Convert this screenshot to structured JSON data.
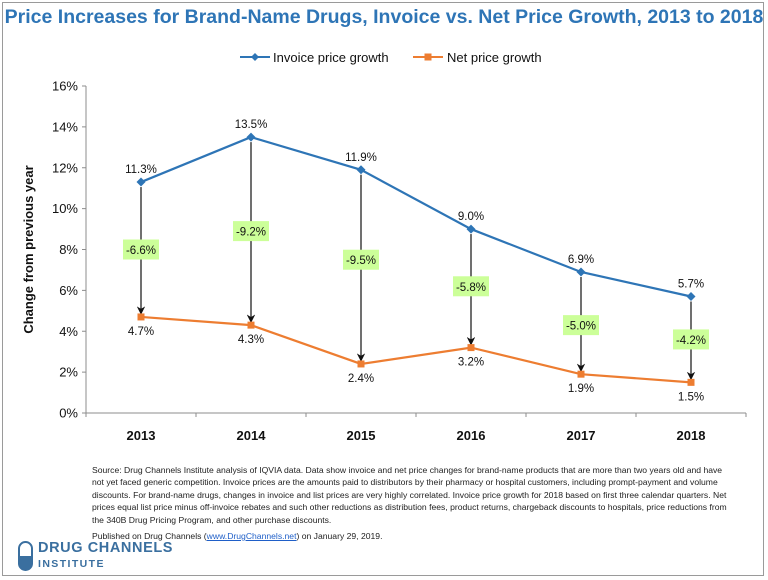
{
  "chart_data": {
    "type": "line",
    "title": "Price Increases for Brand-Name Drugs, Invoice vs. Net Price Growth, 2013 to 2018",
    "xlabel": "",
    "ylabel": "Change from previous year",
    "categories": [
      "2013",
      "2014",
      "2015",
      "2016",
      "2017",
      "2018"
    ],
    "ylim": [
      0,
      16
    ],
    "yticks": [
      0,
      2,
      4,
      6,
      8,
      10,
      12,
      14,
      16
    ],
    "ytick_labels": [
      "0%",
      "2%",
      "4%",
      "6%",
      "8%",
      "10%",
      "12%",
      "14%",
      "16%"
    ],
    "grid": false,
    "legend_position": "top-center",
    "series": [
      {
        "name": "Invoice price growth",
        "color": "#2e75b6",
        "marker": "diamond",
        "values": [
          11.3,
          13.5,
          11.9,
          9.0,
          6.9,
          5.7
        ],
        "labels": [
          "11.3%",
          "13.5%",
          "11.9%",
          "9.0%",
          "6.9%",
          "5.7%"
        ]
      },
      {
        "name": "Net price growth",
        "color": "#ed7d31",
        "marker": "square",
        "values": [
          4.7,
          4.3,
          2.4,
          3.2,
          1.9,
          1.5
        ],
        "labels": [
          "4.7%",
          "4.3%",
          "2.4%",
          "3.2%",
          "1.9%",
          "1.5%"
        ]
      }
    ],
    "differences": {
      "values": [
        -6.6,
        -9.2,
        -9.5,
        -5.8,
        -5.0,
        -4.2
      ],
      "labels": [
        "-6.6%",
        "-9.2%",
        "-9.5%",
        "-5.8%",
        "-5.0%",
        "-4.2%"
      ],
      "label_y": [
        8.0,
        8.9,
        7.5,
        6.2,
        4.3,
        3.6
      ],
      "box_color": "#ccff99"
    }
  },
  "footer": {
    "source": "Source: Drug Channels Institute analysis of  IQVIA data. Data show invoice and net price changes for brand-name products that are more than two years old and have not yet faced generic competition.  Invoice prices are the amounts paid to distributors by their pharmacy or hospital customers, including prompt-payment and volume discounts. For brand-name drugs, changes in invoice and list prices are very highly correlated. Invoice price growth for 2018 based on first three calendar quarters. Net prices equal list price minus off-invoice rebates and such other reductions as distribution fees, product returns, chargeback discounts to hospitals, price reductions from the 340B Drug Pricing Program, and other purchase discounts.",
    "published_prefix": "Published on Drug Channels (",
    "published_link": "www.DrugChannels.net",
    "published_suffix": ") on January 29, 2019."
  },
  "logo": {
    "line1": "DRUG CHANNELS",
    "line2": "INSTITUTE",
    "color": "#3a6f9f"
  }
}
